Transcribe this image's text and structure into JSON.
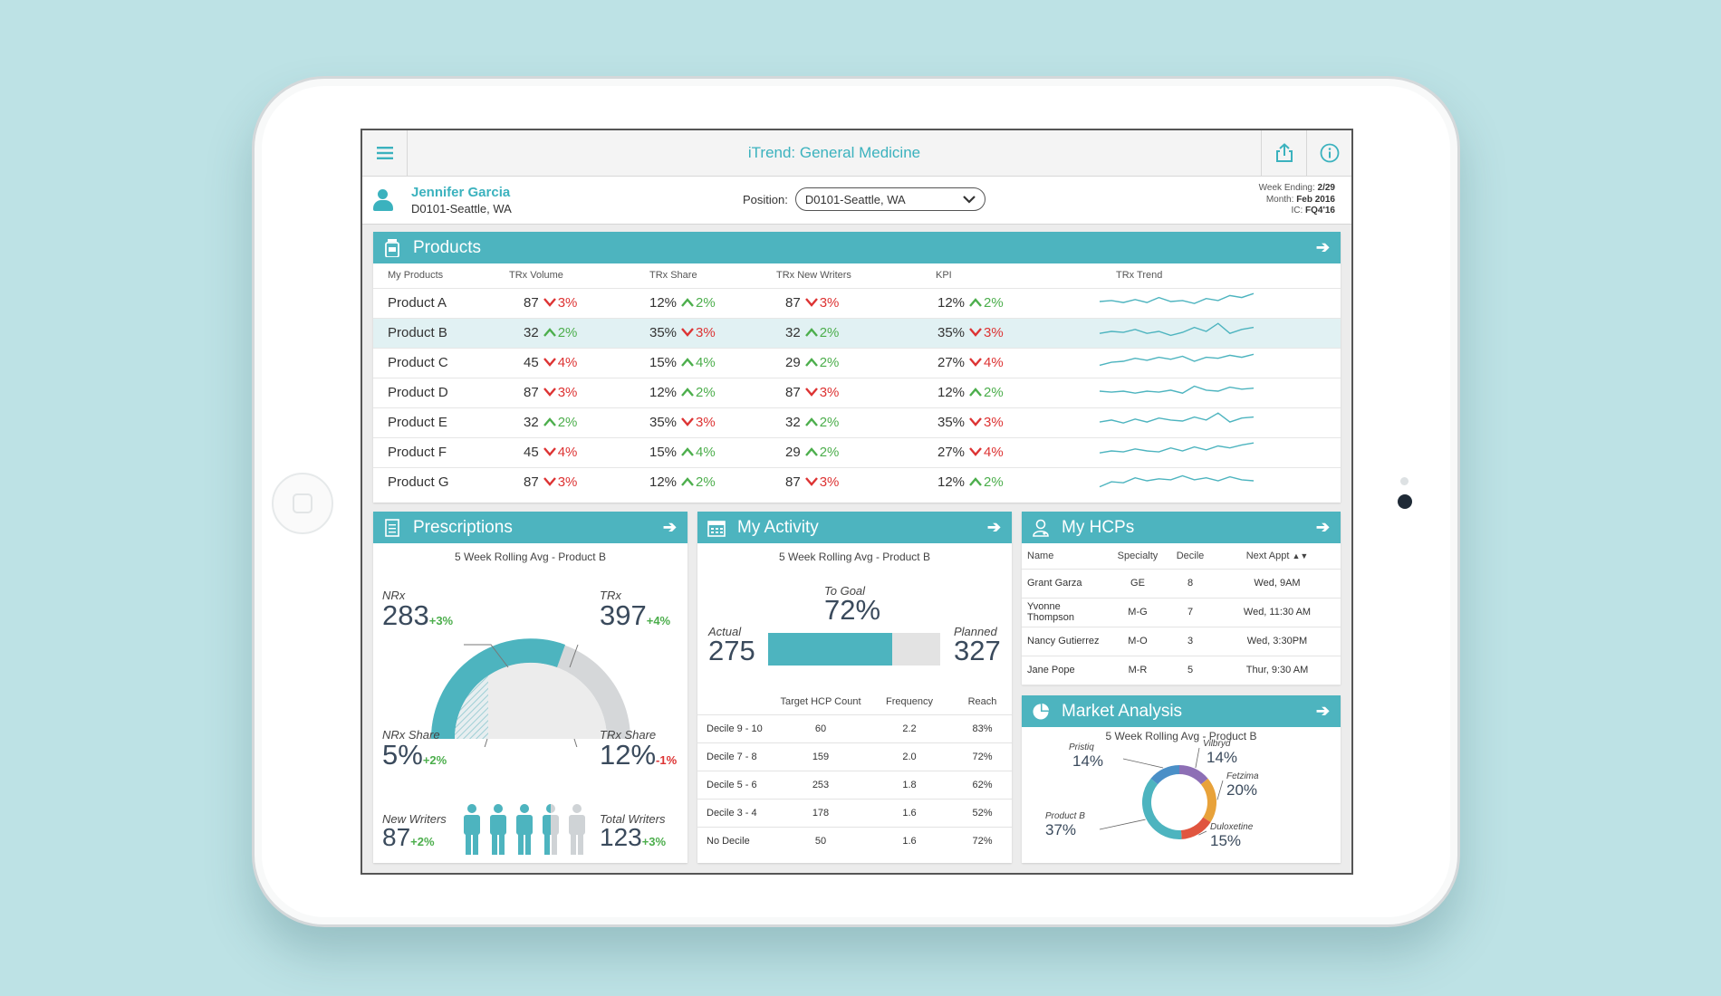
{
  "app": {
    "title": "iTrend: General Medicine"
  },
  "user": {
    "name": "Jennifer Garcia",
    "location": "D0101-Seattle, WA"
  },
  "position": {
    "label": "Position:",
    "value": "D0101-Seattle, WA"
  },
  "week": {
    "ending_label": "Week Ending:",
    "ending": "2/29",
    "month_label": "Month:",
    "month": "Feb 2016",
    "ic_label": "IC:",
    "ic": "FQ4'16"
  },
  "products": {
    "title": "Products",
    "columns": [
      "My Products",
      "TRx Volume",
      "TRx Share",
      "TRx New Writers",
      "KPI",
      "TRx Trend"
    ],
    "rows": [
      {
        "name": "Product A",
        "vol": "87",
        "vol_chg": "3%",
        "vol_dir": "down",
        "share": "12%",
        "share_chg": "2%",
        "share_dir": "up",
        "nw": "87",
        "nw_chg": "3%",
        "nw_dir": "down",
        "kpi": "12%",
        "kpi_chg": "2%",
        "kpi_dir": "up",
        "trend": [
          0.5,
          0.45,
          0.55,
          0.4,
          0.55,
          0.3,
          0.5,
          0.45,
          0.6,
          0.35,
          0.45,
          0.2,
          0.3,
          0.1
        ]
      },
      {
        "name": "Product B",
        "vol": "32",
        "vol_chg": "2%",
        "vol_dir": "up",
        "share": "35%",
        "share_chg": "3%",
        "share_dir": "down",
        "nw": "32",
        "nw_chg": "2%",
        "nw_dir": "up",
        "kpi": "35%",
        "kpi_chg": "3%",
        "kpi_dir": "down",
        "trend": [
          0.6,
          0.5,
          0.55,
          0.4,
          0.6,
          0.5,
          0.7,
          0.55,
          0.3,
          0.5,
          0.1,
          0.6,
          0.4,
          0.3
        ]
      },
      {
        "name": "Product C",
        "vol": "45",
        "vol_chg": "4%",
        "vol_dir": "down",
        "share": "15%",
        "share_chg": "4%",
        "share_dir": "up",
        "nw": "29",
        "nw_chg": "2%",
        "nw_dir": "up",
        "kpi": "27%",
        "kpi_chg": "4%",
        "kpi_dir": "down",
        "trend": [
          0.7,
          0.55,
          0.5,
          0.35,
          0.45,
          0.3,
          0.4,
          0.25,
          0.5,
          0.3,
          0.35,
          0.2,
          0.3,
          0.15
        ]
      },
      {
        "name": "Product D",
        "vol": "87",
        "vol_chg": "3%",
        "vol_dir": "down",
        "share": "12%",
        "share_chg": "2%",
        "share_dir": "up",
        "nw": "87",
        "nw_chg": "3%",
        "nw_dir": "down",
        "kpi": "12%",
        "kpi_chg": "2%",
        "kpi_dir": "up",
        "trend": [
          0.5,
          0.55,
          0.5,
          0.6,
          0.5,
          0.55,
          0.45,
          0.6,
          0.25,
          0.45,
          0.5,
          0.3,
          0.4,
          0.35
        ]
      },
      {
        "name": "Product E",
        "vol": "32",
        "vol_chg": "2%",
        "vol_dir": "up",
        "share": "35%",
        "share_chg": "3%",
        "share_dir": "down",
        "nw": "32",
        "nw_chg": "2%",
        "nw_dir": "up",
        "kpi": "35%",
        "kpi_chg": "3%",
        "kpi_dir": "down",
        "trend": [
          0.55,
          0.45,
          0.6,
          0.4,
          0.55,
          0.35,
          0.45,
          0.5,
          0.3,
          0.45,
          0.1,
          0.55,
          0.35,
          0.3
        ]
      },
      {
        "name": "Product F",
        "vol": "45",
        "vol_chg": "4%",
        "vol_dir": "down",
        "share": "15%",
        "share_chg": "4%",
        "share_dir": "up",
        "nw": "29",
        "nw_chg": "2%",
        "nw_dir": "up",
        "kpi": "27%",
        "kpi_chg": "4%",
        "kpi_dir": "down",
        "trend": [
          0.6,
          0.5,
          0.55,
          0.4,
          0.5,
          0.55,
          0.35,
          0.5,
          0.3,
          0.45,
          0.25,
          0.35,
          0.2,
          0.1
        ]
      },
      {
        "name": "Product G",
        "vol": "87",
        "vol_chg": "3%",
        "vol_dir": "down",
        "share": "12%",
        "share_chg": "2%",
        "share_dir": "up",
        "nw": "87",
        "nw_chg": "3%",
        "nw_dir": "down",
        "kpi": "12%",
        "kpi_chg": "2%",
        "kpi_dir": "up",
        "trend": [
          0.8,
          0.55,
          0.6,
          0.35,
          0.5,
          0.4,
          0.45,
          0.25,
          0.45,
          0.35,
          0.5,
          0.3,
          0.45,
          0.5
        ]
      }
    ]
  },
  "prescriptions": {
    "title": "Prescriptions",
    "subtitle": "5 Week Rolling Avg - Product B",
    "nrx_label": "NRx",
    "nrx": "283",
    "nrx_chg": "+3%",
    "trx_label": "TRx",
    "trx": "397",
    "trx_chg": "+4%",
    "nrx_share_label": "NRx Share",
    "nrx_share": "5%",
    "nrx_share_chg": "+2%",
    "trx_share_label": "TRx Share",
    "trx_share": "12%",
    "trx_share_chg": "-1%",
    "nw_label": "New Writers",
    "nw": "87",
    "nw_chg": "+2%",
    "tw_label": "Total Writers",
    "tw": "123",
    "tw_chg": "+3%",
    "writers_filled": 3.5,
    "writers_total": 5
  },
  "activity": {
    "title": "My Activity",
    "subtitle": "5 Week Rolling Avg - Product B",
    "goal_label": "To Goal",
    "goal": "72%",
    "actual_label": "Actual",
    "actual": "275",
    "planned_label": "Planned",
    "planned": "327",
    "progress": 0.72,
    "columns": [
      "",
      "Target HCP Count",
      "Frequency",
      "Reach"
    ],
    "rows": [
      [
        "Decile 9 - 10",
        "60",
        "2.2",
        "83%"
      ],
      [
        "Decile 7 - 8",
        "159",
        "2.0",
        "72%"
      ],
      [
        "Decile 5 - 6",
        "253",
        "1.8",
        "62%"
      ],
      [
        "Decile 3 - 4",
        "178",
        "1.6",
        "52%"
      ],
      [
        "No Decile",
        "50",
        "1.6",
        "72%"
      ]
    ]
  },
  "hcps": {
    "title": "My HCPs",
    "columns": [
      "Name",
      "Specialty",
      "Decile",
      "Next Appt"
    ],
    "rows": [
      [
        "Grant Garza",
        "GE",
        "8",
        "Wed, 9AM"
      ],
      [
        "Yvonne Thompson",
        "M-G",
        "7",
        "Wed, 11:30 AM"
      ],
      [
        "Nancy Gutierrez",
        "M-O",
        "3",
        "Wed, 3:30PM"
      ],
      [
        "Jane Pope",
        "M-R",
        "5",
        "Thur, 9:30 AM"
      ]
    ]
  },
  "market": {
    "title": "Market Analysis",
    "subtitle": "5 Week Rolling Avg - Product B",
    "slices": [
      {
        "name": "Pristiq",
        "value": "14%",
        "color": "#4a8fc7"
      },
      {
        "name": "Vilbryd",
        "value": "14%",
        "color": "#8d6fb5"
      },
      {
        "name": "Fetzima",
        "value": "20%",
        "color": "#e8a23a"
      },
      {
        "name": "Duloxetine",
        "value": "15%",
        "color": "#e0553f"
      },
      {
        "name": "Product B",
        "value": "37%",
        "color": "#4db4bf"
      }
    ]
  },
  "colors": {
    "accent": "#4db4bf",
    "up": "#4cae4c",
    "down": "#dd3333"
  }
}
